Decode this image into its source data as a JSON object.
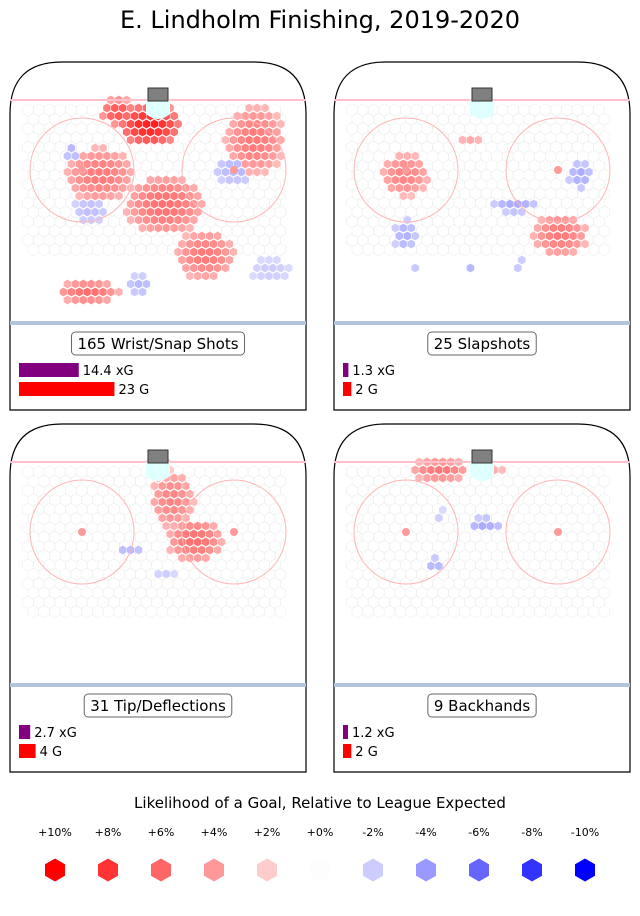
{
  "title": "E. Lindholm Finishing, 2019-2020",
  "panels": [
    {
      "label": "165 Wrist/Snap Shots",
      "xg": 14.4,
      "xg_label": "14.4 xG",
      "goals": 23,
      "goals_label": "23 G"
    },
    {
      "label": "25 Slapshots",
      "xg": 1.3,
      "xg_label": "1.3 xG",
      "goals": 2,
      "goals_label": "2 G"
    },
    {
      "label": "31 Tip/Deflections",
      "xg": 2.7,
      "xg_label": "2.7 xG",
      "goals": 4,
      "goals_label": "4 G"
    },
    {
      "label": "9 Backhands",
      "xg": 1.2,
      "xg_label": "1.2 xG",
      "goals": 2,
      "goals_label": "2 G"
    }
  ],
  "legend": {
    "title": "Likelihood of a Goal, Relative to League Expected",
    "items": [
      {
        "label": "+10%",
        "color": "#ff0000"
      },
      {
        "label": "+8%",
        "color": "#ff3333"
      },
      {
        "label": "+6%",
        "color": "#ff6666"
      },
      {
        "label": "+4%",
        "color": "#ff9999"
      },
      {
        "label": "+2%",
        "color": "#ffcccc"
      },
      {
        "label": "+0%",
        "color": "#fdfdfd"
      },
      {
        "label": "-2%",
        "color": "#ccccff"
      },
      {
        "label": "-4%",
        "color": "#9999ff"
      },
      {
        "label": "-6%",
        "color": "#6666ff"
      },
      {
        "label": "-8%",
        "color": "#3333ff"
      },
      {
        "label": "-10%",
        "color": "#0000ff"
      }
    ]
  },
  "colors": {
    "xg_bar": "#800080",
    "goal_bar": "#ff0000",
    "goal_line": "#ffc0cb",
    "blue_line": "#b0c4de"
  },
  "chart_data": {
    "type": "heatmap",
    "title": "E. Lindholm Finishing, 2019-2020",
    "panels": [
      {
        "shot_type": "Wrist/Snap Shots",
        "shots": 165,
        "xG": 14.4,
        "goals": 23
      },
      {
        "shot_type": "Slapshots",
        "shots": 25,
        "xG": 1.3,
        "goals": 2
      },
      {
        "shot_type": "Tip/Deflections",
        "shots": 31,
        "xG": 2.7,
        "goals": 4
      },
      {
        "shot_type": "Backhands",
        "shots": 9,
        "xG": 1.2,
        "goals": 2
      }
    ],
    "legend_scale": [
      "+10%",
      "+8%",
      "+6%",
      "+4%",
      "+2%",
      "+0%",
      "-2%",
      "-4%",
      "-6%",
      "-8%",
      "-10%"
    ],
    "legend_title": "Likelihood of a Goal, Relative to League Expected"
  }
}
